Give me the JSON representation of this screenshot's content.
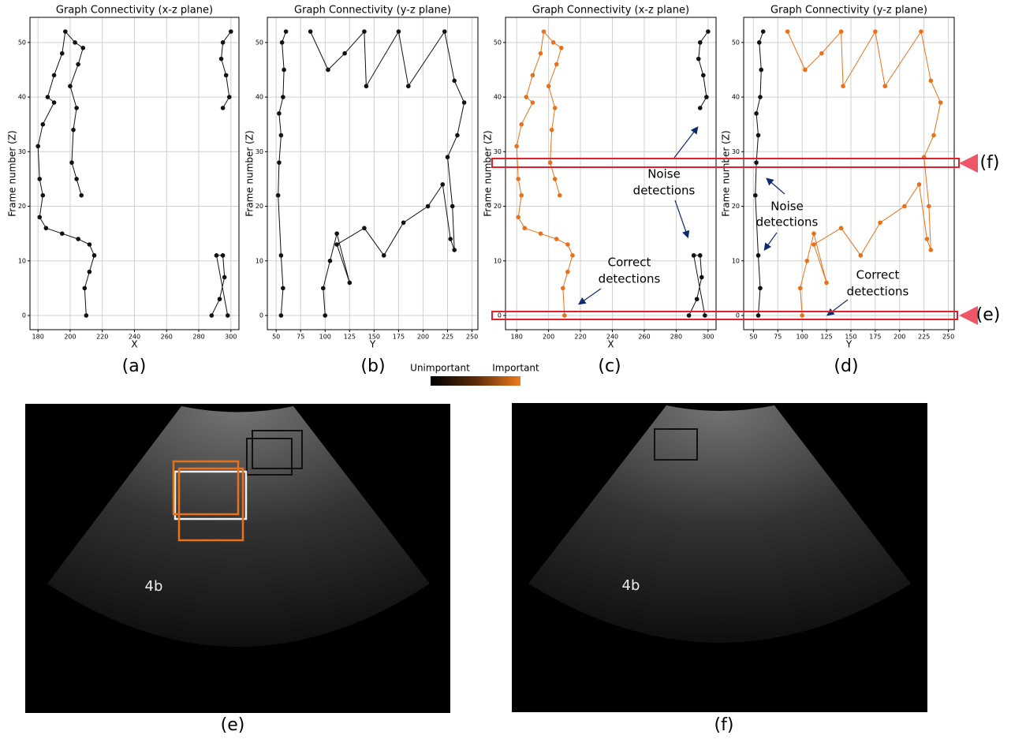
{
  "chart_data": [
    {
      "type": "line",
      "title": "Graph Connectivity (x-z plane)",
      "xlabel": "X",
      "ylabel": "Frame number (Z)",
      "xlim": [
        175,
        305
      ],
      "ylim": [
        -2.6,
        54.6
      ],
      "xticks": [
        180,
        200,
        220,
        240,
        260,
        280,
        300
      ],
      "yticks": [
        0,
        10,
        20,
        30,
        40,
        50
      ],
      "grid": true,
      "series": [
        {
          "color": "#111111",
          "x": [
            210,
            209,
            212,
            215,
            212,
            205,
            195,
            185,
            181,
            183,
            181,
            180,
            183,
            190,
            186,
            190,
            195,
            197,
            203,
            208,
            205,
            200,
            204,
            202,
            201,
            204,
            207
          ],
          "values": [
            0,
            5,
            8,
            11,
            13,
            14,
            15,
            16,
            18,
            22,
            25,
            31,
            35,
            39,
            40,
            44,
            48,
            52,
            50,
            49,
            46,
            42,
            38,
            34,
            28,
            25,
            22
          ]
        },
        {
          "color": "#111111",
          "x": [
            295,
            299,
            297,
            294,
            295,
            300
          ],
          "values": [
            38,
            40,
            44,
            47,
            50,
            52
          ]
        },
        {
          "color": "#111111",
          "x": [
            288,
            293,
            296,
            295,
            291,
            298
          ],
          "values": [
            0,
            3,
            7,
            11,
            11,
            0
          ]
        }
      ]
    },
    {
      "type": "line",
      "title": "Graph Connectivity (y-z plane)",
      "xlabel": "Y",
      "ylabel": "Frame number (Z)",
      "xlim": [
        41,
        256
      ],
      "ylim": [
        -2.6,
        54.6
      ],
      "xticks": [
        50,
        75,
        100,
        125,
        150,
        175,
        200,
        225,
        250
      ],
      "yticks": [
        0,
        10,
        20,
        30,
        40,
        50
      ],
      "grid": true,
      "series": [
        {
          "color": "#111111",
          "x": [
            55,
            57,
            55,
            52,
            53,
            55,
            53,
            57,
            58,
            56,
            60
          ],
          "values": [
            0,
            5,
            11,
            22,
            28,
            33,
            37,
            40,
            45,
            50,
            52
          ]
        },
        {
          "color": "#111111",
          "x": [
            100,
            98,
            105,
            112,
            125,
            112,
            140,
            160,
            180,
            205,
            220,
            228,
            232,
            230,
            225,
            235,
            242,
            232,
            222,
            185,
            175,
            142,
            140,
            120,
            103,
            85
          ],
          "values": [
            0,
            5,
            10,
            15,
            6,
            13,
            16,
            11,
            17,
            20,
            24,
            14,
            12,
            20,
            29,
            33,
            39,
            43,
            52,
            42,
            52,
            42,
            52,
            48,
            45,
            52
          ]
        }
      ]
    },
    {
      "type": "line",
      "title": "Graph Connectivity (x-z plane)",
      "xlabel": "X",
      "ylabel": "Frame number (Z)",
      "xlim": [
        173,
        305
      ],
      "ylim": [
        -2.6,
        54.6
      ],
      "xticks": [
        180,
        200,
        220,
        240,
        260,
        280,
        300
      ],
      "yticks": [
        0,
        10,
        20,
        30,
        40,
        50
      ],
      "grid": true,
      "series": [
        {
          "color": "#e8711a",
          "x": [
            210,
            209,
            212,
            215,
            212,
            205,
            195,
            185,
            181,
            183,
            181,
            180,
            183,
            190,
            186,
            190,
            195,
            197,
            203,
            208,
            205,
            200,
            204,
            202,
            201,
            204,
            207
          ],
          "values": [
            0,
            5,
            8,
            11,
            13,
            14,
            15,
            16,
            18,
            22,
            25,
            31,
            35,
            39,
            40,
            44,
            48,
            52,
            50,
            49,
            46,
            42,
            38,
            34,
            28,
            25,
            22
          ]
        },
        {
          "color": "#111111",
          "x": [
            295,
            299,
            297,
            294,
            295,
            300
          ],
          "values": [
            38,
            40,
            44,
            47,
            50,
            52
          ]
        },
        {
          "color": "#111111",
          "x": [
            288,
            293,
            296,
            295,
            291,
            298
          ],
          "values": [
            0,
            3,
            7,
            11,
            11,
            0
          ]
        }
      ]
    },
    {
      "type": "line",
      "title": "Graph Connectivity (y-z plane)",
      "xlabel": "Y",
      "ylabel": "Frame number (Z)",
      "xlim": [
        40,
        256
      ],
      "ylim": [
        -2.6,
        54.6
      ],
      "xticks": [
        50,
        75,
        100,
        125,
        150,
        175,
        200,
        225,
        250
      ],
      "yticks": [
        0,
        10,
        20,
        30,
        40,
        50
      ],
      "grid": true,
      "series": [
        {
          "color": "#111111",
          "x": [
            55,
            57,
            55,
            52,
            53,
            55,
            53,
            57,
            58,
            56,
            60
          ],
          "values": [
            0,
            5,
            11,
            22,
            28,
            33,
            37,
            40,
            45,
            50,
            52
          ]
        },
        {
          "color": "#e8711a",
          "x": [
            100,
            98,
            105,
            112,
            125,
            112,
            140,
            160,
            180,
            205,
            220,
            228,
            232,
            230,
            225,
            235,
            242,
            232,
            222,
            185,
            175,
            142,
            140,
            120,
            103,
            85
          ],
          "values": [
            0,
            5,
            10,
            15,
            6,
            13,
            16,
            11,
            17,
            20,
            24,
            14,
            12,
            20,
            29,
            33,
            39,
            43,
            52,
            42,
            52,
            42,
            52,
            48,
            45,
            52
          ]
        }
      ]
    }
  ],
  "captions": [
    "(a)",
    "(b)",
    "(c)",
    "(d)"
  ],
  "colorbar": {
    "low": "Unimportant",
    "high": "Important"
  },
  "annotations": {
    "noise_c": [
      "Noise",
      "detections"
    ],
    "correct_c": [
      "Correct",
      "detections"
    ],
    "noise_d": [
      "Noise",
      "detections"
    ],
    "correct_d": [
      "Correct",
      "detections"
    ],
    "marker_f": "(f)",
    "marker_e": "(e)"
  },
  "images": [
    {
      "caption": "(e)",
      "label": "4b"
    },
    {
      "caption": "(f)",
      "label": "4b"
    }
  ]
}
